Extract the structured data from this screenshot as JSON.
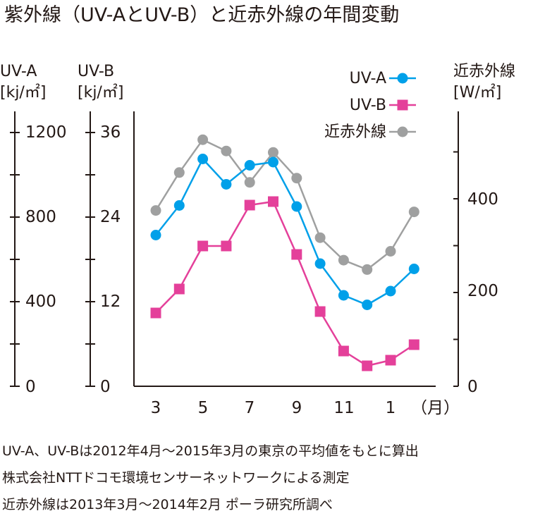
{
  "title": "紫外線（UV-AとUV-B）と近赤外線の年間変動",
  "axes": {
    "uva": {
      "label": "UV-A",
      "unit": "[kj/㎡]",
      "ticks": [
        "1200",
        "800",
        "400",
        "0"
      ]
    },
    "uvb": {
      "label": "UV-B",
      "unit": "[kj/㎡]",
      "ticks": [
        "36",
        "24",
        "12",
        "0"
      ]
    },
    "nir": {
      "label": "近赤外線",
      "unit": "[W/㎡]",
      "ticks": [
        "400",
        "200",
        "0"
      ]
    },
    "x": {
      "ticks": [
        "3",
        "5",
        "7",
        "9",
        "11",
        "1"
      ],
      "unit": "（月）"
    }
  },
  "legend": [
    "UV-A",
    "UV-B",
    "近赤外線"
  ],
  "notes": [
    "UV-A、UV-Bは2012年4月～2015年3月の東京の平均値をもとに算出",
    "株式会社NTTドコモ環境センサーネットワークによる測定",
    "近赤外線は2013年3月～2014年2月 ポーラ研究所調べ"
  ],
  "chart_data": {
    "type": "line",
    "categories": [
      "3",
      "4",
      "5",
      "6",
      "7",
      "8",
      "9",
      "10",
      "11",
      "12",
      "1",
      "2"
    ],
    "x_unit": "（月）",
    "series": [
      {
        "name": "UV-A",
        "axis": "UV-A [kj/㎡]",
        "color": "#00a0e9",
        "marker": "circle",
        "values": [
          715,
          855,
          1075,
          955,
          1045,
          1060,
          850,
          580,
          430,
          385,
          450,
          555
        ]
      },
      {
        "name": "UV-B",
        "axis": "UV-B [kj/㎡]",
        "color": "#e4409a",
        "marker": "square",
        "values": [
          10.4,
          13.8,
          19.9,
          19.9,
          25.7,
          26.2,
          18.7,
          10.6,
          5.0,
          2.9,
          3.7,
          5.9
        ]
      },
      {
        "name": "近赤外線",
        "axis": "近赤外線 [W/㎡]",
        "color": "#9fa0a0",
        "marker": "circle",
        "values": [
          375,
          456,
          526,
          502,
          435,
          499,
          444,
          317,
          269,
          249,
          288,
          372
        ]
      }
    ],
    "y_axes": [
      {
        "label": "UV-A",
        "unit": "[kj/㎡]",
        "range": [
          0,
          1200
        ],
        "ticks": [
          0,
          400,
          800,
          1200
        ]
      },
      {
        "label": "UV-B",
        "unit": "[kj/㎡]",
        "range": [
          0,
          36
        ],
        "ticks": [
          0,
          12,
          24,
          36
        ]
      },
      {
        "label": "近赤外線",
        "unit": "[W/㎡]",
        "range": [
          0,
          549
        ],
        "ticks": [
          0,
          200,
          400
        ]
      }
    ],
    "grid": false,
    "legend_position": "top-right"
  }
}
